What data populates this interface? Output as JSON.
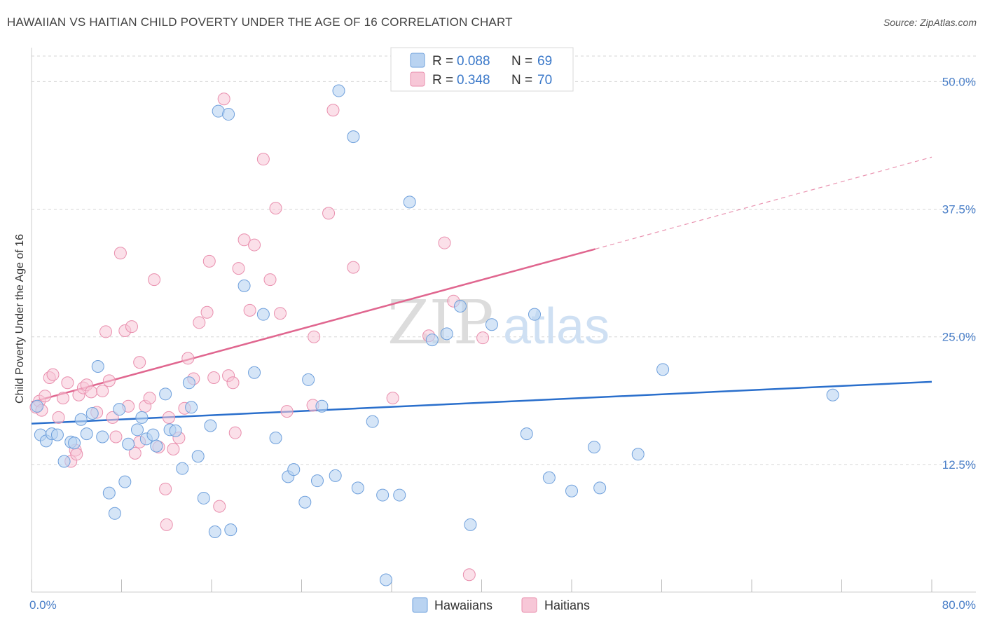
{
  "title": "HAWAIIAN VS HAITIAN CHILD POVERTY UNDER THE AGE OF 16 CORRELATION CHART",
  "source": "Source: ZipAtlas.com",
  "watermark": {
    "zip": "ZIP",
    "atlas": "atlas"
  },
  "colors": {
    "hawaiian_fill": "#b9d3f1",
    "hawaiian_stroke": "#6fa0dc",
    "hawaiian_line": "#2a6fcc",
    "haitian_fill": "#f7c7d7",
    "haitian_stroke": "#e98fae",
    "haitian_line": "#e0668f",
    "grid": "#d6d6d6",
    "tick_label": "#4a7fc8"
  },
  "legend_top": {
    "rows": [
      {
        "r_label": "R =",
        "r_value": "0.088",
        "n_label": "N =",
        "n_value": "69"
      },
      {
        "r_label": "R =",
        "r_value": "0.348",
        "n_label": "N =",
        "n_value": "70"
      }
    ]
  },
  "legend_bottom": {
    "hawaiians": "Hawaiians",
    "haitians": "Haitians"
  },
  "chart_data": {
    "type": "scatter",
    "title": "HAWAIIAN VS HAITIAN CHILD POVERTY UNDER THE AGE OF 16 CORRELATION CHART",
    "xlabel": "",
    "ylabel": "Child Poverty Under the Age of 16",
    "xlim": [
      0,
      80
    ],
    "ylim": [
      0,
      52.5
    ],
    "x_tick_labels": [
      "0.0%",
      "80.0%"
    ],
    "y_ticks": [
      12.5,
      25.0,
      37.5,
      50.0
    ],
    "y_tick_labels": [
      "12.5%",
      "25.0%",
      "37.5%",
      "50.0%"
    ],
    "grid": "horizontal dashed",
    "legend": "top-center",
    "series": [
      {
        "name": "Hawaiians",
        "r": 0.088,
        "n": 69,
        "trend": {
          "x": [
            0,
            80
          ],
          "y": [
            16.5,
            20.6
          ]
        },
        "points": [
          [
            0.5,
            18.2
          ],
          [
            0.8,
            15.4
          ],
          [
            1.3,
            14.8
          ],
          [
            1.8,
            15.5
          ],
          [
            2.3,
            15.4
          ],
          [
            2.9,
            12.8
          ],
          [
            3.5,
            14.7
          ],
          [
            3.8,
            14.6
          ],
          [
            4.4,
            16.9
          ],
          [
            4.9,
            15.5
          ],
          [
            5.4,
            17.5
          ],
          [
            5.9,
            22.1
          ],
          [
            6.3,
            15.2
          ],
          [
            6.9,
            9.7
          ],
          [
            7.4,
            7.7
          ],
          [
            7.8,
            17.9
          ],
          [
            8.3,
            10.8
          ],
          [
            8.6,
            14.5
          ],
          [
            9.4,
            15.9
          ],
          [
            9.8,
            17.1
          ],
          [
            10.2,
            15.0
          ],
          [
            10.8,
            15.4
          ],
          [
            11.1,
            14.3
          ],
          [
            11.9,
            19.4
          ],
          [
            12.3,
            15.9
          ],
          [
            12.8,
            15.8
          ],
          [
            13.4,
            12.1
          ],
          [
            14.0,
            20.5
          ],
          [
            14.2,
            18.1
          ],
          [
            14.8,
            13.3
          ],
          [
            15.3,
            9.2
          ],
          [
            15.9,
            16.3
          ],
          [
            16.3,
            5.9
          ],
          [
            16.6,
            47.1
          ],
          [
            17.5,
            46.8
          ],
          [
            17.7,
            6.1
          ],
          [
            18.9,
            30.0
          ],
          [
            19.8,
            21.5
          ],
          [
            20.6,
            27.2
          ],
          [
            21.7,
            15.1
          ],
          [
            22.8,
            11.3
          ],
          [
            23.3,
            12.0
          ],
          [
            24.3,
            8.8
          ],
          [
            24.6,
            20.8
          ],
          [
            25.4,
            10.9
          ],
          [
            25.8,
            18.2
          ],
          [
            27.0,
            11.4
          ],
          [
            27.3,
            49.1
          ],
          [
            28.6,
            44.6
          ],
          [
            29.0,
            10.2
          ],
          [
            30.3,
            16.7
          ],
          [
            31.2,
            9.5
          ],
          [
            31.5,
            1.2
          ],
          [
            32.7,
            9.5
          ],
          [
            33.6,
            38.2
          ],
          [
            35.6,
            24.7
          ],
          [
            36.9,
            25.3
          ],
          [
            38.1,
            28.0
          ],
          [
            39.0,
            6.6
          ],
          [
            40.9,
            26.2
          ],
          [
            44.0,
            15.5
          ],
          [
            44.7,
            27.2
          ],
          [
            46.0,
            11.2
          ],
          [
            48.0,
            9.9
          ],
          [
            50.0,
            14.2
          ],
          [
            50.5,
            10.2
          ],
          [
            53.9,
            13.5
          ],
          [
            56.1,
            21.8
          ],
          [
            71.2,
            19.3
          ]
        ]
      },
      {
        "name": "Haitians",
        "r": 0.348,
        "n": 70,
        "trend": {
          "x": [
            0,
            50.1
          ],
          "y": [
            18.6,
            33.6
          ]
        },
        "trend_extension": {
          "x": [
            50.1,
            80
          ],
          "y": [
            33.6,
            42.6
          ]
        },
        "points": [
          [
            0.4,
            18.1
          ],
          [
            0.7,
            18.7
          ],
          [
            0.9,
            17.8
          ],
          [
            1.2,
            19.2
          ],
          [
            1.6,
            21.0
          ],
          [
            1.9,
            21.3
          ],
          [
            2.4,
            17.1
          ],
          [
            2.8,
            19.0
          ],
          [
            3.2,
            20.5
          ],
          [
            3.5,
            12.8
          ],
          [
            3.9,
            13.9
          ],
          [
            4.2,
            19.3
          ],
          [
            4.6,
            20.0
          ],
          [
            4.9,
            20.3
          ],
          [
            5.3,
            19.6
          ],
          [
            5.8,
            17.6
          ],
          [
            6.3,
            19.7
          ],
          [
            6.6,
            25.5
          ],
          [
            6.9,
            20.7
          ],
          [
            7.2,
            17.1
          ],
          [
            7.5,
            15.2
          ],
          [
            7.9,
            33.2
          ],
          [
            8.3,
            25.6
          ],
          [
            8.6,
            18.2
          ],
          [
            8.9,
            26.0
          ],
          [
            9.2,
            13.6
          ],
          [
            9.6,
            22.5
          ],
          [
            10.1,
            18.2
          ],
          [
            10.5,
            19.0
          ],
          [
            10.9,
            30.6
          ],
          [
            11.3,
            14.2
          ],
          [
            11.9,
            10.1
          ],
          [
            12.2,
            17.1
          ],
          [
            12.6,
            14.0
          ],
          [
            13.1,
            15.1
          ],
          [
            13.6,
            18.0
          ],
          [
            13.9,
            22.9
          ],
          [
            14.4,
            20.9
          ],
          [
            14.9,
            26.4
          ],
          [
            15.6,
            27.4
          ],
          [
            15.8,
            32.4
          ],
          [
            16.2,
            21.0
          ],
          [
            16.7,
            8.4
          ],
          [
            17.1,
            48.3
          ],
          [
            17.5,
            21.2
          ],
          [
            17.9,
            20.5
          ],
          [
            18.1,
            15.6
          ],
          [
            18.4,
            31.7
          ],
          [
            18.9,
            34.5
          ],
          [
            19.4,
            27.6
          ],
          [
            19.8,
            34.0
          ],
          [
            20.6,
            42.4
          ],
          [
            21.2,
            30.6
          ],
          [
            21.7,
            37.6
          ],
          [
            22.1,
            27.3
          ],
          [
            22.7,
            17.7
          ],
          [
            25.1,
            25.0
          ],
          [
            26.4,
            37.1
          ],
          [
            26.8,
            47.2
          ],
          [
            28.6,
            31.8
          ],
          [
            32.1,
            19.0
          ],
          [
            35.3,
            25.1
          ],
          [
            36.7,
            34.2
          ],
          [
            37.5,
            28.5
          ],
          [
            38.9,
            1.7
          ],
          [
            40.1,
            24.9
          ],
          [
            12.0,
            6.6
          ],
          [
            4.0,
            13.5
          ],
          [
            9.6,
            14.7
          ],
          [
            25.0,
            18.3
          ]
        ]
      }
    ]
  }
}
